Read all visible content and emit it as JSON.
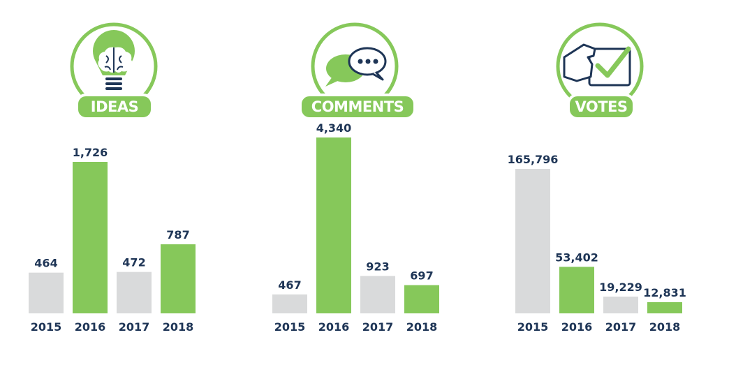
{
  "colors": {
    "green": "#86c85a",
    "gray": "#d9dadb",
    "navy": "#1e3556",
    "white": "#ffffff"
  },
  "chart_data": [
    {
      "type": "bar",
      "title": "IDEAS",
      "icon": "lightbulb-brain-icon",
      "categories": [
        "2015",
        "2016",
        "2017",
        "2018"
      ],
      "values": [
        464,
        1726,
        472,
        787
      ],
      "value_labels": [
        "464",
        "1,726",
        "472",
        "787"
      ],
      "bar_colors": [
        "gray",
        "green",
        "gray",
        "green"
      ],
      "ylim": [
        0,
        1850
      ],
      "grid": false
    },
    {
      "type": "bar",
      "title": "COMMENTS",
      "icon": "speech-bubbles-icon",
      "categories": [
        "2015",
        "2016",
        "2017",
        "2018"
      ],
      "values": [
        467,
        4340,
        923,
        697
      ],
      "value_labels": [
        "467",
        "4,340",
        "923",
        "697"
      ],
      "bar_colors": [
        "gray",
        "green",
        "gray",
        "green"
      ],
      "ylim": [
        0,
        4480
      ],
      "grid": false
    },
    {
      "type": "bar",
      "title": "VOTES",
      "icon": "hand-ballot-checkmark-icon",
      "categories": [
        "2015",
        "2016",
        "2017",
        "2018"
      ],
      "values": [
        165796,
        53402,
        19229,
        12831
      ],
      "value_labels": [
        "165,796",
        "53,402",
        "19,229",
        "12,831"
      ],
      "bar_colors": [
        "gray",
        "green",
        "gray",
        "green"
      ],
      "ylim": [
        0,
        202000
      ],
      "grid": false
    }
  ]
}
